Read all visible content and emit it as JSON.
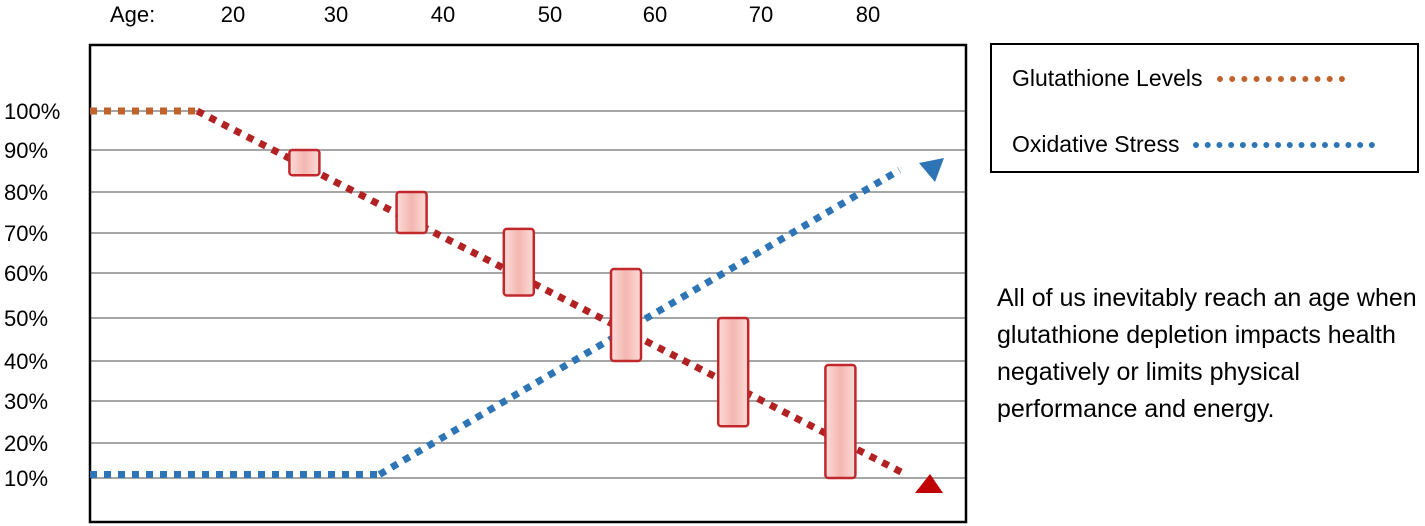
{
  "chart_data": {
    "type": "line",
    "age_label": "Age:",
    "x_ticks": [
      "20",
      "30",
      "40",
      "50",
      "60",
      "70",
      "80"
    ],
    "y_ticks": [
      "100%",
      "90%",
      "80%",
      "70%",
      "60%",
      "50%",
      "40%",
      "30%",
      "20%",
      "10%"
    ],
    "series": [
      {
        "name": "Glutathione Levels",
        "color": "#c0622c",
        "line_color": "#b22222",
        "points": [
          [
            10,
            100
          ],
          [
            20,
            100
          ],
          [
            87,
            10
          ]
        ]
      },
      {
        "name": "Oxidative Stress",
        "color": "#2e75b6",
        "points": [
          [
            10,
            11
          ],
          [
            37,
            11
          ],
          [
            87,
            87
          ]
        ]
      }
    ],
    "ranges": [
      {
        "x": 30,
        "low": 84,
        "high": 90
      },
      {
        "x": 40,
        "low": 70,
        "high": 80
      },
      {
        "x": 50,
        "low": 55,
        "high": 71
      },
      {
        "x": 60,
        "low": 40,
        "high": 61
      },
      {
        "x": 70,
        "low": 24,
        "high": 50
      },
      {
        "x": 80,
        "low": 10,
        "high": 39
      }
    ],
    "range_fill": "#f4b6b0",
    "range_stroke": "#c0282d",
    "grid": true
  },
  "legend": {
    "items": [
      {
        "label": "Glutathione Levels",
        "color": "#c0622c"
      },
      {
        "label": "Oxidative Stress",
        "color": "#2e75b6"
      }
    ]
  },
  "note": "All of us inevitably reach an age when glutathione depletion impacts health negatively or limits physical performance and energy."
}
